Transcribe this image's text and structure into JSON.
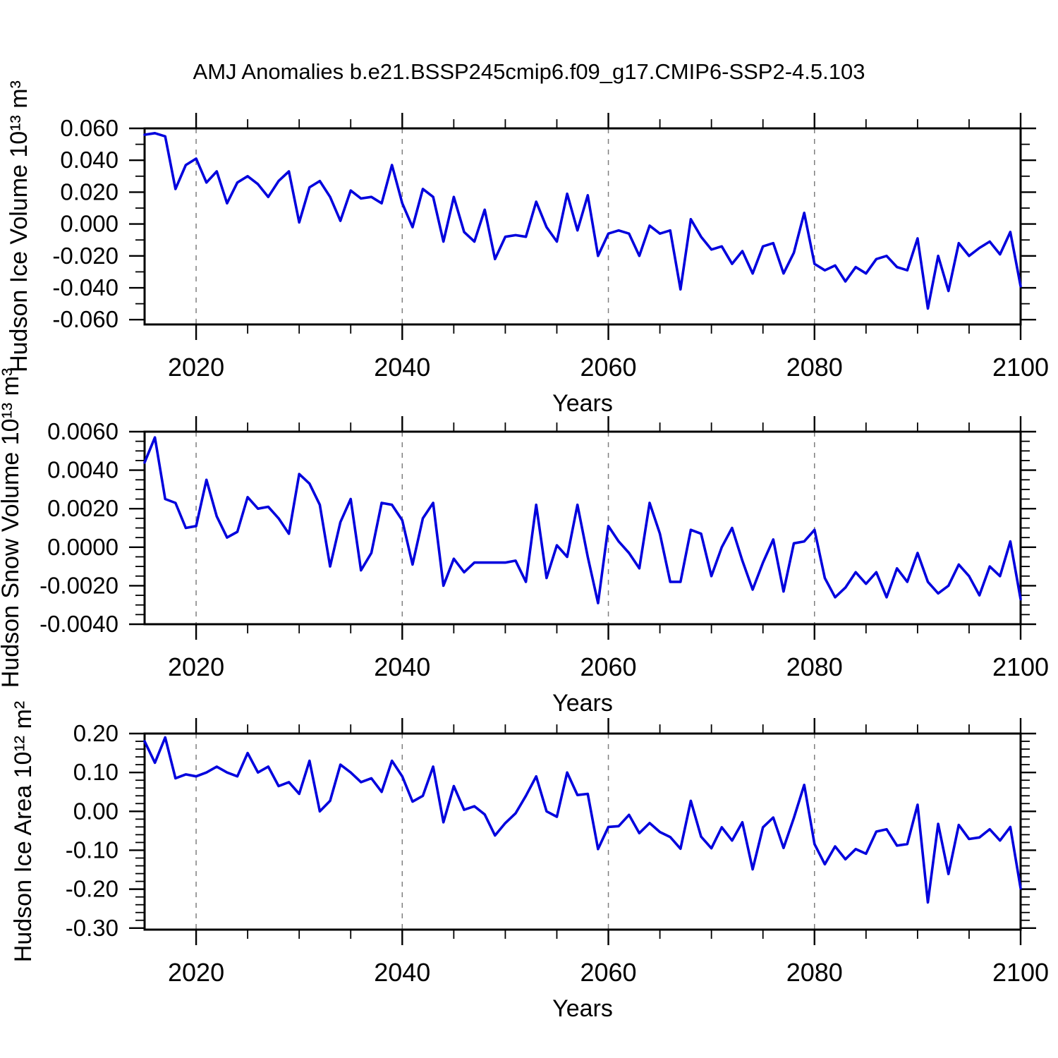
{
  "title": "AMJ Anomalies b.e21.BSSP245cmip6.f09_g17.CMIP6-SSP2-4.5.103",
  "colors": {
    "line": "#0000dd",
    "grid": "#7f7f7f",
    "frame": "#000000",
    "text": "#000000",
    "background": "#ffffff"
  },
  "years": [
    2015,
    2016,
    2017,
    2018,
    2019,
    2020,
    2021,
    2022,
    2023,
    2024,
    2025,
    2026,
    2027,
    2028,
    2029,
    2030,
    2031,
    2032,
    2033,
    2034,
    2035,
    2036,
    2037,
    2038,
    2039,
    2040,
    2041,
    2042,
    2043,
    2044,
    2045,
    2046,
    2047,
    2048,
    2049,
    2050,
    2051,
    2052,
    2053,
    2054,
    2055,
    2056,
    2057,
    2058,
    2059,
    2060,
    2061,
    2062,
    2063,
    2064,
    2065,
    2066,
    2067,
    2068,
    2069,
    2070,
    2071,
    2072,
    2073,
    2074,
    2075,
    2076,
    2077,
    2078,
    2079,
    2080,
    2081,
    2082,
    2083,
    2084,
    2085,
    2086,
    2087,
    2088,
    2089,
    2090,
    2091,
    2092,
    2093,
    2094,
    2095,
    2096,
    2097,
    2098,
    2099,
    2100
  ],
  "chart_data": [
    {
      "type": "line",
      "title": "",
      "xlabel": "Years",
      "ylabel": "Hudson Ice Volume 10¹³ m³",
      "xlim": [
        2015,
        2100
      ],
      "ylim": [
        -0.06,
        0.06
      ],
      "xticks": [
        2020,
        2040,
        2060,
        2080,
        2100
      ],
      "xtick_labels": [
        "2020",
        "2040",
        "2060",
        "2080",
        "2100"
      ],
      "xticks_minor": [
        2025,
        2030,
        2035,
        2045,
        2050,
        2055,
        2065,
        2070,
        2075,
        2085,
        2090,
        2095
      ],
      "grid_x": [
        2020,
        2040,
        2060,
        2080
      ],
      "yticks": [
        0.06,
        0.04,
        0.02,
        0.0,
        -0.02,
        -0.04,
        -0.06
      ],
      "ytick_labels": [
        "0.060",
        "0.040",
        "0.020",
        "0.000",
        "-0.020",
        "-0.040",
        "-0.060"
      ],
      "yticks_minor": [
        0.05,
        0.03,
        0.01,
        -0.01,
        -0.03,
        -0.05
      ],
      "legend": "none",
      "grid": "dashed-vertical-only",
      "values": [
        0.056,
        0.057,
        0.055,
        0.022,
        0.037,
        0.041,
        0.026,
        0.033,
        0.013,
        0.026,
        0.03,
        0.025,
        0.017,
        0.027,
        0.033,
        0.001,
        0.023,
        0.027,
        0.017,
        0.002,
        0.021,
        0.016,
        0.017,
        0.013,
        0.037,
        0.013,
        -0.002,
        0.022,
        0.017,
        -0.011,
        0.017,
        -0.005,
        -0.011,
        0.009,
        -0.022,
        -0.008,
        -0.007,
        -0.008,
        0.014,
        -0.002,
        -0.011,
        0.019,
        -0.004,
        0.018,
        -0.02,
        -0.006,
        -0.004,
        -0.006,
        -0.02,
        -0.001,
        -0.006,
        -0.004,
        -0.041,
        0.003,
        -0.008,
        -0.016,
        -0.014,
        -0.025,
        -0.017,
        -0.031,
        -0.014,
        -0.012,
        -0.031,
        -0.018,
        0.007,
        -0.025,
        -0.029,
        -0.026,
        -0.036,
        -0.027,
        -0.031,
        -0.022,
        -0.02,
        -0.027,
        -0.029,
        -0.009,
        -0.053,
        -0.02,
        -0.042,
        -0.012,
        -0.02,
        -0.015,
        -0.011,
        -0.019,
        -0.005,
        -0.039
      ]
    },
    {
      "type": "line",
      "title": "",
      "xlabel": "Years",
      "ylabel": "Hudson Snow Volume 10¹³ m³",
      "xlim": [
        2015,
        2100
      ],
      "ylim": [
        -0.004,
        0.006
      ],
      "xticks": [
        2020,
        2040,
        2060,
        2080,
        2100
      ],
      "xtick_labels": [
        "2020",
        "2040",
        "2060",
        "2080",
        "2100"
      ],
      "xticks_minor": [
        2025,
        2030,
        2035,
        2045,
        2050,
        2055,
        2065,
        2070,
        2075,
        2085,
        2090,
        2095
      ],
      "grid_x": [
        2020,
        2040,
        2060,
        2080
      ],
      "yticks": [
        0.006,
        0.004,
        0.002,
        0.0,
        -0.002,
        -0.004
      ],
      "ytick_labels": [
        "0.0060",
        "0.0040",
        "0.0020",
        "0.0000",
        "-0.0020",
        "-0.0040"
      ],
      "yticks_minor": [
        0.0055,
        0.005,
        0.0045,
        0.0035,
        0.003,
        0.0025,
        0.0015,
        0.001,
        0.0005,
        -0.0005,
        -0.001,
        -0.0015,
        -0.0025,
        -0.003,
        -0.0035
      ],
      "legend": "none",
      "grid": "dashed-vertical-only",
      "values": [
        0.0044,
        0.0057,
        0.0025,
        0.0023,
        0.001,
        0.0011,
        0.0035,
        0.0016,
        0.0005,
        0.0008,
        0.0026,
        0.002,
        0.0021,
        0.0015,
        0.0007,
        0.0038,
        0.0033,
        0.0022,
        -0.001,
        0.0013,
        0.0025,
        -0.0012,
        -0.0003,
        0.0023,
        0.0022,
        0.0014,
        -0.0009,
        0.0015,
        0.0023,
        -0.002,
        -0.0006,
        -0.0013,
        -0.0008,
        -0.0008,
        -0.0008,
        -0.0008,
        -0.0007,
        -0.0018,
        0.0022,
        -0.0016,
        0.0001,
        -0.0005,
        0.0022,
        -0.0005,
        -0.0029,
        0.0011,
        0.0003,
        -0.0003,
        -0.0011,
        0.0023,
        0.0007,
        -0.0018,
        -0.0018,
        0.0009,
        0.0007,
        -0.0015,
        0.0,
        0.001,
        -0.0007,
        -0.0022,
        -0.0008,
        0.0004,
        -0.0023,
        0.0002,
        0.0003,
        0.0009,
        -0.0016,
        -0.0026,
        -0.0021,
        -0.0013,
        -0.0019,
        -0.0013,
        -0.0026,
        -0.0011,
        -0.0018,
        -0.0003,
        -0.0018,
        -0.0024,
        -0.002,
        -0.0009,
        -0.0015,
        -0.0025,
        -0.001,
        -0.0015,
        0.0003,
        -0.0027
      ]
    },
    {
      "type": "line",
      "title": "",
      "xlabel": "Years",
      "ylabel": "Hudson Ice Area 10¹² m²",
      "xlim": [
        2015,
        2100
      ],
      "ylim": [
        -0.3,
        0.2
      ],
      "xticks": [
        2020,
        2040,
        2060,
        2080,
        2100
      ],
      "xtick_labels": [
        "2020",
        "2040",
        "2060",
        "2080",
        "2100"
      ],
      "xticks_minor": [
        2025,
        2030,
        2035,
        2045,
        2050,
        2055,
        2065,
        2070,
        2075,
        2085,
        2090,
        2095
      ],
      "grid_x": [
        2020,
        2040,
        2060,
        2080
      ],
      "yticks": [
        0.2,
        0.1,
        0.0,
        -0.1,
        -0.2,
        -0.3
      ],
      "ytick_labels": [
        "0.20",
        "0.10",
        "0.00",
        "-0.10",
        "-0.20",
        "-0.30"
      ],
      "yticks_minor": [
        0.18,
        0.16,
        0.14,
        0.12,
        0.08,
        0.06,
        0.04,
        0.02,
        -0.02,
        -0.04,
        -0.06,
        -0.08,
        -0.12,
        -0.14,
        -0.16,
        -0.18,
        -0.22,
        -0.24,
        -0.26,
        -0.28
      ],
      "legend": "none",
      "grid": "dashed-vertical-only",
      "values": [
        0.18,
        0.125,
        0.19,
        0.085,
        0.095,
        0.09,
        0.1,
        0.115,
        0.1,
        0.09,
        0.15,
        0.1,
        0.115,
        0.065,
        0.075,
        0.045,
        0.13,
        0.0,
        0.027,
        0.12,
        0.1,
        0.075,
        0.085,
        0.05,
        0.13,
        0.09,
        0.025,
        0.04,
        0.115,
        -0.028,
        0.065,
        0.004,
        0.013,
        -0.008,
        -0.062,
        -0.03,
        -0.005,
        0.04,
        0.09,
        0.0,
        -0.014,
        0.1,
        0.042,
        0.045,
        -0.097,
        -0.04,
        -0.038,
        -0.009,
        -0.056,
        -0.03,
        -0.053,
        -0.066,
        -0.096,
        0.027,
        -0.065,
        -0.095,
        -0.041,
        -0.075,
        -0.028,
        -0.149,
        -0.041,
        -0.016,
        -0.094,
        -0.017,
        0.068,
        -0.084,
        -0.136,
        -0.09,
        -0.123,
        -0.097,
        -0.109,
        -0.052,
        -0.046,
        -0.088,
        -0.084,
        0.017,
        -0.234,
        -0.032,
        -0.161,
        -0.035,
        -0.071,
        -0.067,
        -0.046,
        -0.075,
        -0.04,
        -0.198
      ]
    }
  ]
}
